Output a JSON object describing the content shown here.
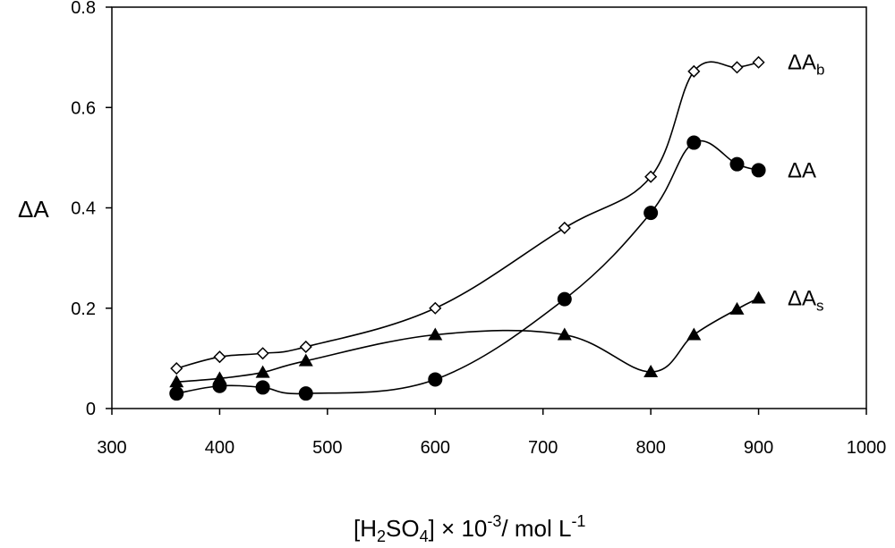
{
  "chart_data": {
    "type": "line",
    "title": "",
    "xlabel": {
      "main": "[H",
      "sub": "2",
      "mid": "SO",
      "sub2": "4",
      "tail": "] × 10",
      "sup": "-3",
      "tail2": "/ mol L",
      "sup2": "-1"
    },
    "ylabel": "ΔA",
    "xlim": [
      300,
      1000
    ],
    "ylim": [
      0,
      0.8
    ],
    "xticks": [
      "300",
      "400",
      "500",
      "600",
      "700",
      "800",
      "900",
      "1000"
    ],
    "yticks": [
      "0",
      "0.2",
      "0.4",
      "0.6",
      "0.8"
    ],
    "grid": false,
    "series": [
      {
        "name": "ΔAb",
        "label_main": "ΔA",
        "label_sub": "b",
        "marker": "diamond-open",
        "x": [
          360,
          400,
          440,
          480,
          600,
          720,
          800,
          840,
          880,
          900
        ],
        "y": [
          0.08,
          0.103,
          0.11,
          0.123,
          0.2,
          0.36,
          0.462,
          0.672,
          0.68,
          0.69
        ]
      },
      {
        "name": "ΔA",
        "label_main": "ΔA",
        "label_sub": "",
        "marker": "circle-filled",
        "x": [
          360,
          400,
          440,
          480,
          600,
          720,
          800,
          840,
          880,
          900
        ],
        "y": [
          0.03,
          0.045,
          0.042,
          0.03,
          0.058,
          0.218,
          0.39,
          0.53,
          0.487,
          0.475
        ]
      },
      {
        "name": "ΔAs",
        "label_main": "ΔA",
        "label_sub": "s",
        "marker": "triangle-filled",
        "x": [
          360,
          400,
          440,
          480,
          600,
          720,
          800,
          840,
          880,
          900
        ],
        "y": [
          0.053,
          0.06,
          0.072,
          0.095,
          0.147,
          0.147,
          0.073,
          0.147,
          0.198,
          0.22
        ]
      }
    ]
  }
}
